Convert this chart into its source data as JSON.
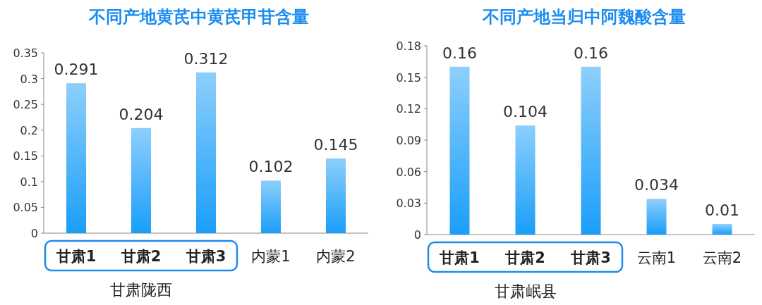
{
  "chart_data": [
    {
      "type": "bar",
      "title": "不同产地黄芪中黄芪甲苷含量",
      "categories": [
        "甘肃1",
        "甘肃2",
        "甘肃3",
        "内蒙1",
        "内蒙2"
      ],
      "values": [
        0.291,
        0.204,
        0.312,
        0.102,
        0.145
      ],
      "color": "#1a9ef9",
      "ylim": [
        0,
        0.35
      ],
      "yticks": [
        0,
        0.05,
        {
          "value": 0.1,
          "label": "0.1"
        },
        0.15,
        {
          "value": 0.2,
          "label": "0.2"
        },
        0.25,
        {
          "value": 0.3,
          "label": "0.3"
        },
        0.35
      ],
      "data_labels": true,
      "grid": false,
      "annotations": [
        "甘肃陇西"
      ]
    },
    {
      "type": "bar",
      "title": "不同产地当归中阿魏酸含量",
      "categories": [
        "甘肃1",
        "甘肃2",
        "甘肃3",
        "云南1",
        "云南2"
      ],
      "values": [
        0.16,
        0.104,
        0.16,
        0.034,
        0.01
      ],
      "color": "#1a9ef9",
      "ylim": [
        0,
        0.18
      ],
      "yticks": [
        0,
        0.03,
        0.06,
        0.09,
        0.12,
        0.15,
        0.18
      ],
      "data_labels": true,
      "grid": false,
      "annotations": [
        "甘肃岷县"
      ]
    }
  ]
}
